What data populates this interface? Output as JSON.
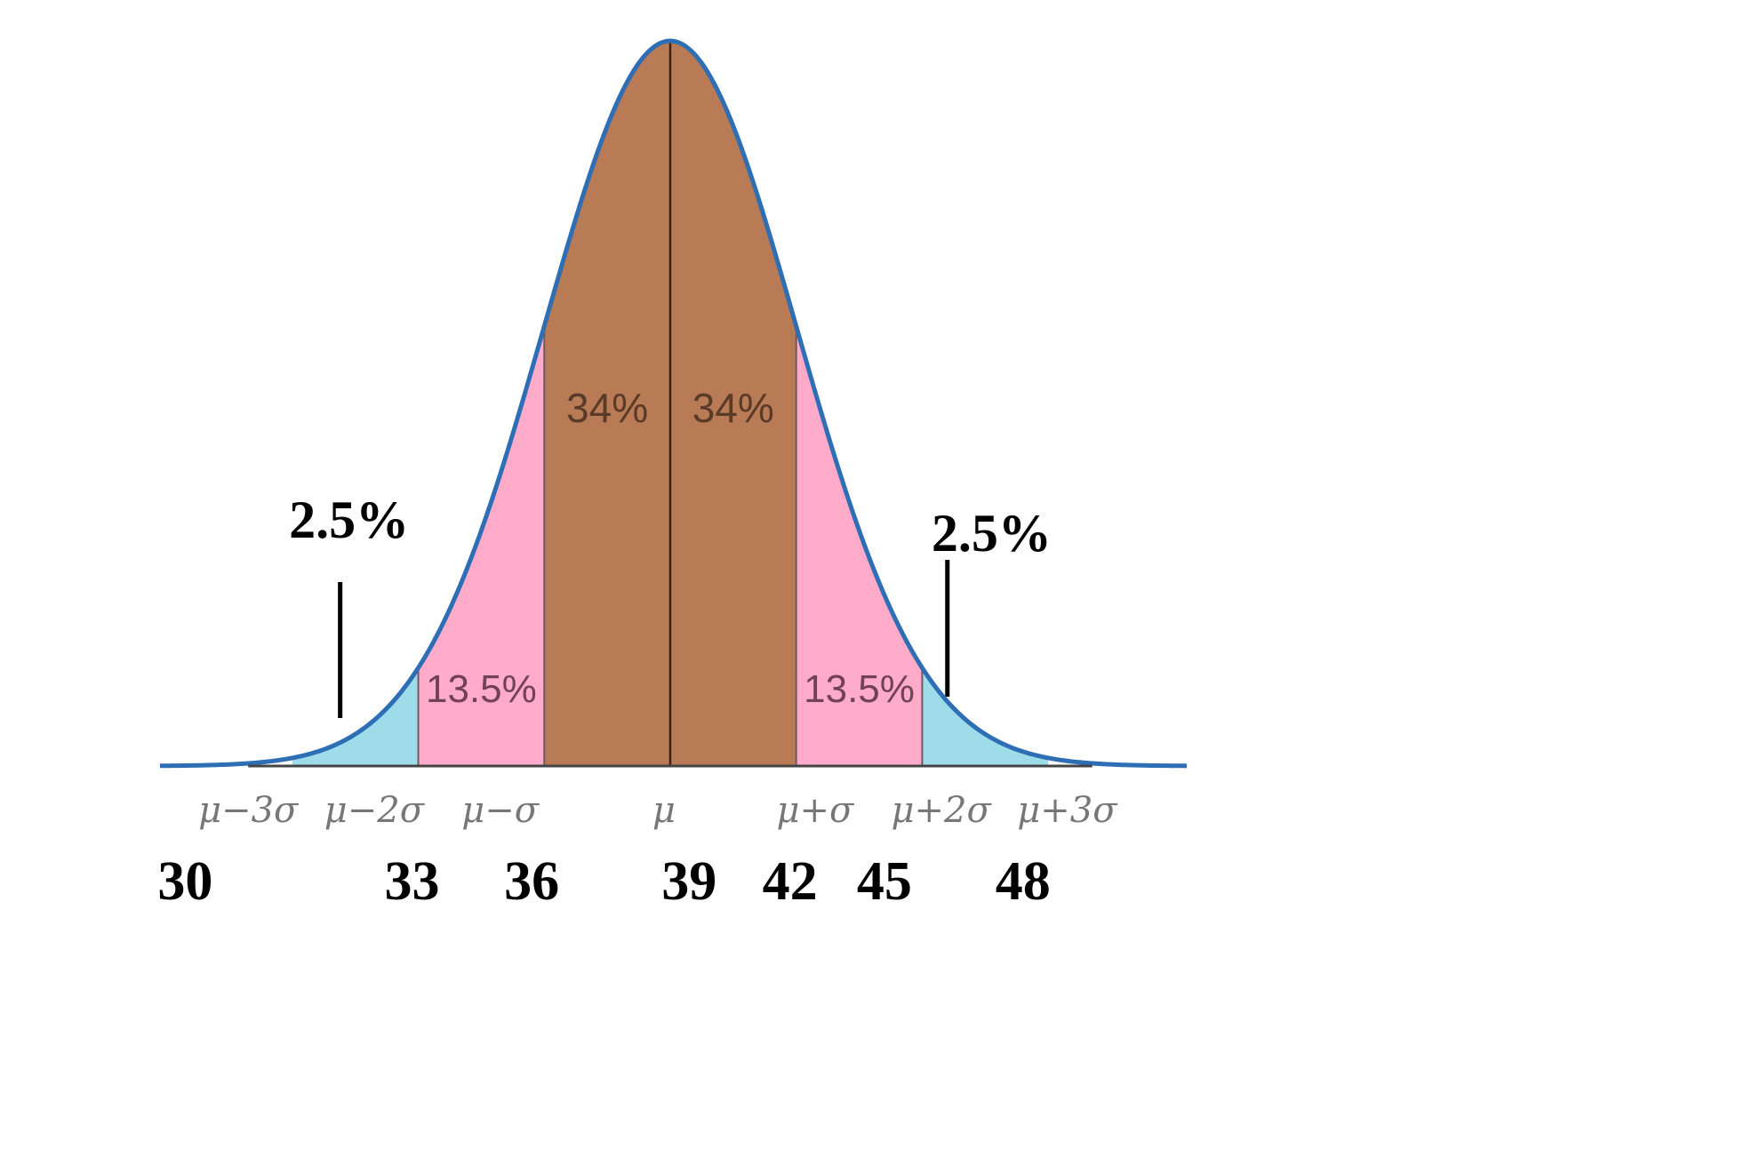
{
  "chart_data": {
    "type": "area",
    "mu": 39,
    "sigma": 3,
    "regions": [
      {
        "from": 33,
        "to": 36,
        "label": "13.5%",
        "color": "#ffabc9"
      },
      {
        "from": 36,
        "to": 39,
        "label": "34%",
        "color": "#b87b55"
      },
      {
        "from": 39,
        "to": 42,
        "label": "34%",
        "color": "#b87b55"
      },
      {
        "from": 42,
        "to": 45,
        "label": "13.5%",
        "color": "#ffabc9"
      }
    ],
    "tails": [
      {
        "side": "left",
        "from": 30,
        "to": 33,
        "label": "2.5%",
        "color": "#9fdcea"
      },
      {
        "side": "right",
        "from": 45,
        "to": 48,
        "label": "2.5%",
        "color": "#9fdcea"
      }
    ],
    "sigma_ticks": [
      "μ−3σ",
      "μ−2σ",
      "μ−σ",
      "μ",
      "μ+σ",
      "μ+2σ",
      "μ+3σ"
    ],
    "value_ticks": [
      "30",
      "33",
      "36",
      "39",
      "42",
      "45",
      "48"
    ],
    "curve_color": "#2e6eb5"
  }
}
